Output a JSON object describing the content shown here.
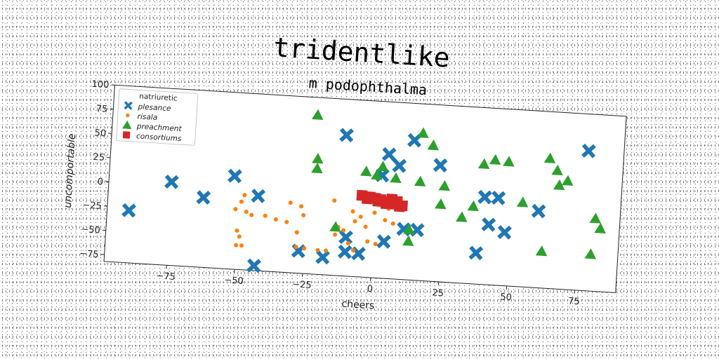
{
  "chart_data": {
    "type": "scatter",
    "title": "tridentlike",
    "subtitle": "m podophthalma",
    "xlabel": "cheers",
    "ylabel": "uncomportable",
    "xlim": [
      -98,
      90
    ],
    "ylim": [
      -82,
      100
    ],
    "xticks": [
      -75,
      -50,
      -25,
      0,
      25,
      50,
      75
    ],
    "yticks": [
      100,
      75,
      50,
      25,
      0,
      -25,
      -50,
      -75
    ],
    "grid": false,
    "legend": {
      "title": "natriuretic",
      "placement": "top-left"
    },
    "series": [
      {
        "name": "plesance",
        "marker": "x",
        "color": "#1f77b4",
        "points": [
          [
            -90,
            -28
          ],
          [
            -75,
            4
          ],
          [
            -63,
            -10
          ],
          [
            -52,
            14
          ],
          [
            -43,
            -5
          ],
          [
            -43,
            -77
          ],
          [
            -12,
            63
          ],
          [
            -27,
            -59
          ],
          [
            -18,
            -64
          ],
          [
            -10,
            -42
          ],
          [
            -10,
            -57
          ],
          [
            -5,
            -58
          ],
          [
            4,
            46
          ],
          [
            2,
            24
          ],
          [
            8,
            35
          ],
          [
            13,
            62
          ],
          [
            11,
            -30
          ],
          [
            16,
            -30
          ],
          [
            23,
            38
          ],
          [
            4,
            -44
          ],
          [
            38,
            -50
          ],
          [
            40,
            8
          ],
          [
            42,
            -20
          ],
          [
            45,
            8
          ],
          [
            48,
            -27
          ],
          [
            60,
            -3
          ],
          [
            77,
            62
          ]
        ]
      },
      {
        "name": "risala",
        "marker": "o",
        "color": "#ff7f0e",
        "points": [
          [
            -48,
            -5
          ],
          [
            -49,
            -12
          ],
          [
            -51,
            -20
          ],
          [
            -47,
            -22
          ],
          [
            -45,
            -25
          ],
          [
            -50,
            -42
          ],
          [
            -49,
            -48
          ],
          [
            -50,
            -57
          ],
          [
            -48,
            -57
          ],
          [
            -40,
            -25
          ],
          [
            -36,
            -28
          ],
          [
            -31,
            -10
          ],
          [
            -32,
            -30
          ],
          [
            -28,
            -40
          ],
          [
            -27,
            -13
          ],
          [
            -26,
            -22
          ],
          [
            -28,
            -55
          ],
          [
            -25,
            -56
          ],
          [
            -20,
            -57
          ],
          [
            -17,
            -57
          ],
          [
            -14,
            -40
          ],
          [
            -13,
            -32
          ],
          [
            -11,
            -35
          ],
          [
            -9,
            -48
          ],
          [
            -7,
            -25
          ],
          [
            -8,
            -15
          ],
          [
            -7,
            -55
          ],
          [
            -5,
            -20
          ],
          [
            -3,
            -30
          ],
          [
            -2,
            -45
          ],
          [
            0,
            -15
          ],
          [
            4,
            -22
          ],
          [
            7,
            -25
          ],
          [
            -15,
            -5
          ],
          [
            5,
            -10
          ],
          [
            1,
            -47
          ]
        ]
      },
      {
        "name": "preachment",
        "marker": "^",
        "color": "#2ca02c",
        "points": [
          [
            -23,
            82
          ],
          [
            -22,
            37
          ],
          [
            -22,
            27
          ],
          [
            -14,
            -32
          ],
          [
            -4,
            27
          ],
          [
            0,
            24
          ],
          [
            2,
            33
          ],
          [
            7,
            22
          ],
          [
            13,
            -30
          ],
          [
            13,
            -42
          ],
          [
            16,
            70
          ],
          [
            20,
            58
          ],
          [
            16,
            20
          ],
          [
            25,
            17
          ],
          [
            24,
            -2
          ],
          [
            32,
            -14
          ],
          [
            36,
            -2
          ],
          [
            39,
            42
          ],
          [
            43,
            47
          ],
          [
            48,
            46
          ],
          [
            54,
            5
          ],
          [
            62,
            -44
          ],
          [
            63,
            52
          ],
          [
            66,
            40
          ],
          [
            67,
            25
          ],
          [
            70,
            30
          ],
          [
            80,
            -44
          ],
          [
            81,
            -7
          ],
          [
            83,
            -17
          ]
        ]
      },
      {
        "name": "consortiums",
        "marker": "s",
        "color": "#d62728",
        "points": [
          [
            -5,
            2
          ],
          [
            -2,
            1
          ],
          [
            0,
            0
          ],
          [
            2,
            -1
          ],
          [
            5,
            -3
          ],
          [
            7,
            -5
          ],
          [
            9,
            -7
          ],
          [
            10,
            -6
          ],
          [
            -3,
            -1
          ],
          [
            1,
            -3
          ],
          [
            4,
            -5
          ],
          [
            6,
            0
          ],
          [
            8,
            -2
          ]
        ]
      }
    ]
  }
}
